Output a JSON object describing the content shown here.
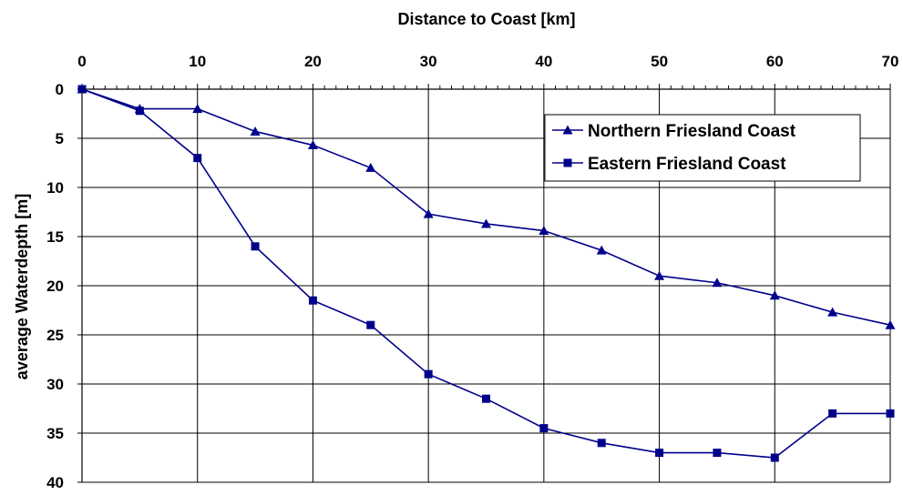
{
  "chart_data": {
    "type": "line",
    "xlabel": "Distance to Coast [km]",
    "ylabel": "average Waterdepth [m]",
    "xlim": [
      0,
      70
    ],
    "ylim": [
      0,
      40
    ],
    "y_inverted": true,
    "x_axis_position": "top",
    "x_ticks": [
      0,
      10,
      20,
      30,
      40,
      50,
      60,
      70
    ],
    "x_minor_step": 1,
    "y_ticks": [
      0,
      5,
      10,
      15,
      20,
      25,
      30,
      35,
      40
    ],
    "grid": true,
    "legend_position": "top-right",
    "series": [
      {
        "name": "Northern Friesland Coast",
        "marker": "triangle",
        "color": "#00008B",
        "x": [
          0,
          5,
          10,
          15,
          20,
          25,
          30,
          35,
          40,
          45,
          50,
          55,
          60,
          65,
          70
        ],
        "values": [
          0,
          2,
          2,
          4.3,
          5.7,
          8,
          12.7,
          13.7,
          14.4,
          16.4,
          19,
          19.7,
          21,
          22.7,
          24
        ]
      },
      {
        "name": "Eastern Friesland Coast",
        "marker": "square",
        "color": "#00008B",
        "x": [
          0,
          5,
          10,
          15,
          20,
          25,
          30,
          35,
          40,
          45,
          50,
          55,
          60,
          65,
          70
        ],
        "values": [
          0,
          2.2,
          7,
          16,
          21.5,
          24,
          29,
          31.5,
          34.5,
          36,
          37,
          37,
          37.5,
          33,
          33
        ]
      }
    ]
  }
}
